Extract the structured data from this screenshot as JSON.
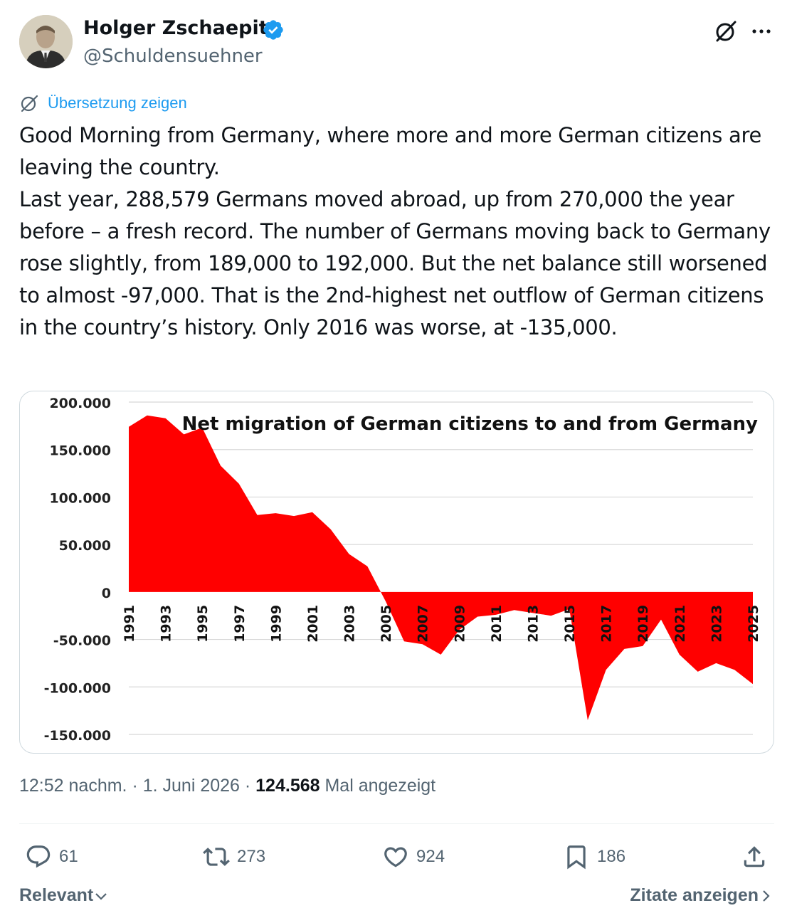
{
  "author": {
    "name": "Holger Zschaepitz",
    "handle": "@Schuldensuehner",
    "verified_color": "#1d9bf0"
  },
  "icons": {
    "verified": "verified-badge-icon",
    "grok": "grok-icon",
    "more": "more-icon",
    "translate": "translate-icon",
    "reply": "reply-icon",
    "retweet": "retweet-icon",
    "like": "like-icon",
    "bookmark": "bookmark-icon",
    "share": "share-icon",
    "chevron_down": "chevron-down-icon",
    "chevron_right": "chevron-right-icon"
  },
  "translate_label": "Übersetzung zeigen",
  "tweet": {
    "line1": "Good Morning from Germany, where more and more German citizens are leaving the country.",
    "line2": "Last year, 288,579 Germans moved abroad, up from 270,000 the year before – a fresh record. The number of Germans moving back to Germany rose slightly, from 189,000 to 192,000. But the net balance still worsened to almost -97,000. That is the 2nd-highest net outflow of German citizens in the country’s history. Only 2016 was worse, at -135,000."
  },
  "meta": {
    "time": "12:52 nachm.",
    "sep1": " · ",
    "date": "1. Juni 2026",
    "sep2": " · ",
    "views": "124.568",
    "views_label": " Mal angezeigt"
  },
  "actions": {
    "replies": "61",
    "retweets": "273",
    "likes": "924",
    "bookmarks": "186"
  },
  "footer": {
    "sort_label": "Relevant",
    "quotes_label": "Zitate anzeigen"
  },
  "chart_data": {
    "type": "area",
    "title": "Net migration of German citizens to and from Germany",
    "color": "#ff0000",
    "ylim": [
      -150000,
      200000
    ],
    "y_ticks": [
      200000,
      150000,
      100000,
      50000,
      0,
      -50000,
      -100000,
      -150000
    ],
    "y_tick_labels": [
      "200.000",
      "150.000",
      "100.000",
      "50.000",
      "0",
      "-50.000",
      "-100.000",
      "-150.000"
    ],
    "x_tick_labels": [
      "1991",
      "1993",
      "1995",
      "1997",
      "1999",
      "2001",
      "2003",
      "2005",
      "2007",
      "2009",
      "2011",
      "2013",
      "2015",
      "2017",
      "2019",
      "2021",
      "2023",
      "2025"
    ],
    "grid": true,
    "x": [
      1991,
      1992,
      1993,
      1994,
      1995,
      1996,
      1997,
      1998,
      1999,
      2000,
      2001,
      2002,
      2003,
      2004,
      2005,
      2006,
      2007,
      2008,
      2009,
      2010,
      2011,
      2012,
      2013,
      2014,
      2015,
      2016,
      2017,
      2018,
      2019,
      2020,
      2021,
      2022,
      2023,
      2024,
      2025
    ],
    "values": [
      174000,
      186000,
      183000,
      166000,
      173000,
      133000,
      114000,
      81000,
      83000,
      80000,
      84000,
      66000,
      40000,
      27000,
      -10000,
      -52000,
      -55000,
      -66000,
      -40000,
      -26000,
      -24000,
      -19000,
      -22000,
      -25000,
      -18000,
      -135000,
      -82000,
      -60000,
      -57000,
      -29000,
      -66000,
      -84000,
      -75000,
      -82000,
      -97000
    ]
  }
}
